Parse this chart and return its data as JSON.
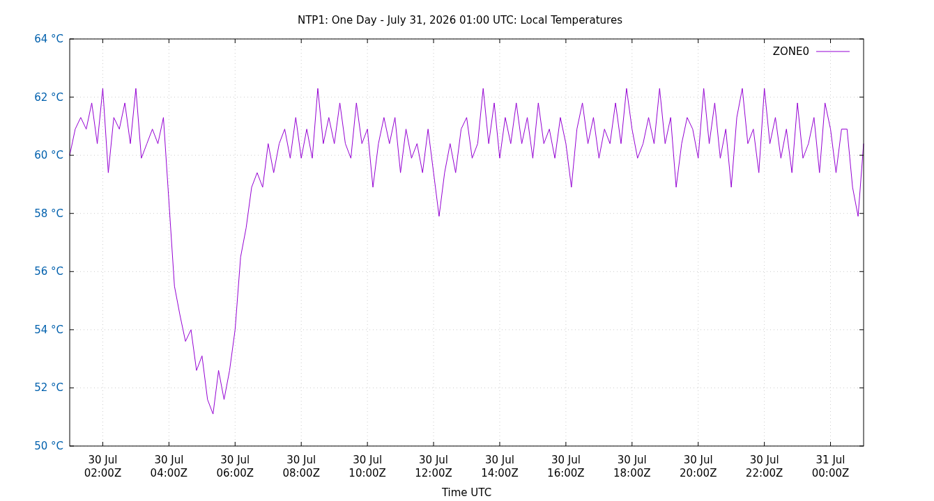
{
  "chart_data": {
    "type": "line",
    "title": "NTP1: One Day - July 31, 2026 01:00 UTC: Local Temperatures",
    "xlabel": "Time UTC",
    "xlim": [
      "2026-07-30T01:00",
      "2026-07-31T01:00"
    ],
    "xticks": [
      {
        "value": "2026-07-30T02:00",
        "label": "30 Jul\n02:00Z"
      },
      {
        "value": "2026-07-30T04:00",
        "label": "30 Jul\n04:00Z"
      },
      {
        "value": "2026-07-30T06:00",
        "label": "30 Jul\n06:00Z"
      },
      {
        "value": "2026-07-30T08:00",
        "label": "30 Jul\n08:00Z"
      },
      {
        "value": "2026-07-30T10:00",
        "label": "30 Jul\n10:00Z"
      },
      {
        "value": "2026-07-30T12:00",
        "label": "30 Jul\n12:00Z"
      },
      {
        "value": "2026-07-30T14:00",
        "label": "30 Jul\n14:00Z"
      },
      {
        "value": "2026-07-30T16:00",
        "label": "30 Jul\n16:00Z"
      },
      {
        "value": "2026-07-30T18:00",
        "label": "30 Jul\n18:00Z"
      },
      {
        "value": "2026-07-30T20:00",
        "label": "30 Jul\n20:00Z"
      },
      {
        "value": "2026-07-30T22:00",
        "label": "30 Jul\n22:00Z"
      },
      {
        "value": "2026-07-31T00:00",
        "label": "31 Jul\n00:00Z"
      }
    ],
    "ylim": [
      50,
      64
    ],
    "yticks": [
      {
        "value": 50,
        "label": "50 °C"
      },
      {
        "value": 52,
        "label": "52 °C"
      },
      {
        "value": 54,
        "label": "54 °C"
      },
      {
        "value": 56,
        "label": "56 °C"
      },
      {
        "value": 58,
        "label": "58 °C"
      },
      {
        "value": 60,
        "label": "60 °C"
      },
      {
        "value": 62,
        "label": "62 °C"
      },
      {
        "value": 64,
        "label": "64 °C"
      }
    ],
    "grid": true,
    "legend": "top right",
    "x": [
      "2026-07-30T01:00",
      "2026-07-30T01:10",
      "2026-07-30T01:20",
      "2026-07-30T01:30",
      "2026-07-30T01:40",
      "2026-07-30T01:50",
      "2026-07-30T02:00",
      "2026-07-30T02:10",
      "2026-07-30T02:20",
      "2026-07-30T02:30",
      "2026-07-30T02:40",
      "2026-07-30T02:50",
      "2026-07-30T03:00",
      "2026-07-30T03:10",
      "2026-07-30T03:20",
      "2026-07-30T03:30",
      "2026-07-30T03:40",
      "2026-07-30T03:50",
      "2026-07-30T04:00",
      "2026-07-30T04:10",
      "2026-07-30T04:20",
      "2026-07-30T04:30",
      "2026-07-30T04:40",
      "2026-07-30T04:50",
      "2026-07-30T05:00",
      "2026-07-30T05:10",
      "2026-07-30T05:20",
      "2026-07-30T05:30",
      "2026-07-30T05:40",
      "2026-07-30T05:50",
      "2026-07-30T06:00",
      "2026-07-30T06:10",
      "2026-07-30T06:20",
      "2026-07-30T06:30",
      "2026-07-30T06:40",
      "2026-07-30T06:50",
      "2026-07-30T07:00",
      "2026-07-30T07:10",
      "2026-07-30T07:20",
      "2026-07-30T07:30",
      "2026-07-30T07:40",
      "2026-07-30T07:50",
      "2026-07-30T08:00",
      "2026-07-30T08:10",
      "2026-07-30T08:20",
      "2026-07-30T08:30",
      "2026-07-30T08:40",
      "2026-07-30T08:50",
      "2026-07-30T09:00",
      "2026-07-30T09:10",
      "2026-07-30T09:20",
      "2026-07-30T09:30",
      "2026-07-30T09:40",
      "2026-07-30T09:50",
      "2026-07-30T10:00",
      "2026-07-30T10:10",
      "2026-07-30T10:20",
      "2026-07-30T10:30",
      "2026-07-30T10:40",
      "2026-07-30T10:50",
      "2026-07-30T11:00",
      "2026-07-30T11:10",
      "2026-07-30T11:20",
      "2026-07-30T11:30",
      "2026-07-30T11:40",
      "2026-07-30T11:50",
      "2026-07-30T12:00",
      "2026-07-30T12:10",
      "2026-07-30T12:20",
      "2026-07-30T12:30",
      "2026-07-30T12:40",
      "2026-07-30T12:50",
      "2026-07-30T13:00",
      "2026-07-30T13:10",
      "2026-07-30T13:20",
      "2026-07-30T13:30",
      "2026-07-30T13:40",
      "2026-07-30T13:50",
      "2026-07-30T14:00",
      "2026-07-30T14:10",
      "2026-07-30T14:20",
      "2026-07-30T14:30",
      "2026-07-30T14:40",
      "2026-07-30T14:50",
      "2026-07-30T15:00",
      "2026-07-30T15:10",
      "2026-07-30T15:20",
      "2026-07-30T15:30",
      "2026-07-30T15:40",
      "2026-07-30T15:50",
      "2026-07-30T16:00",
      "2026-07-30T16:10",
      "2026-07-30T16:20",
      "2026-07-30T16:30",
      "2026-07-30T16:40",
      "2026-07-30T16:50",
      "2026-07-30T17:00",
      "2026-07-30T17:10",
      "2026-07-30T17:20",
      "2026-07-30T17:30",
      "2026-07-30T17:40",
      "2026-07-30T17:50",
      "2026-07-30T18:00",
      "2026-07-30T18:10",
      "2026-07-30T18:20",
      "2026-07-30T18:30",
      "2026-07-30T18:40",
      "2026-07-30T18:50",
      "2026-07-30T19:00",
      "2026-07-30T19:10",
      "2026-07-30T19:20",
      "2026-07-30T19:30",
      "2026-07-30T19:40",
      "2026-07-30T19:50",
      "2026-07-30T20:00",
      "2026-07-30T20:10",
      "2026-07-30T20:20",
      "2026-07-30T20:30",
      "2026-07-30T20:40",
      "2026-07-30T20:50",
      "2026-07-30T21:00",
      "2026-07-30T21:10",
      "2026-07-30T21:20",
      "2026-07-30T21:30",
      "2026-07-30T21:40",
      "2026-07-30T21:50",
      "2026-07-30T22:00",
      "2026-07-30T22:10",
      "2026-07-30T22:20",
      "2026-07-30T22:30",
      "2026-07-30T22:40",
      "2026-07-30T22:50",
      "2026-07-30T23:00",
      "2026-07-30T23:10",
      "2026-07-30T23:20",
      "2026-07-30T23:30",
      "2026-07-30T23:40",
      "2026-07-30T23:50",
      "2026-07-31T00:00",
      "2026-07-31T00:10",
      "2026-07-31T00:20",
      "2026-07-31T00:30",
      "2026-07-31T00:40",
      "2026-07-31T00:50",
      "2026-07-31T01:00"
    ],
    "series": [
      {
        "name": "ZONE0",
        "color": "#9400d3",
        "values": [
          60.0,
          60.9,
          61.3,
          60.9,
          61.8,
          60.4,
          62.3,
          59.4,
          61.3,
          60.9,
          61.8,
          60.4,
          62.3,
          59.9,
          60.4,
          60.9,
          60.4,
          61.3,
          58.4,
          55.5,
          54.5,
          53.6,
          54.0,
          52.6,
          53.1,
          51.6,
          51.1,
          52.6,
          51.6,
          52.6,
          54.0,
          56.5,
          57.5,
          58.9,
          59.4,
          58.9,
          60.4,
          59.4,
          60.4,
          60.9,
          59.9,
          61.3,
          59.9,
          60.9,
          59.9,
          62.3,
          60.4,
          61.3,
          60.4,
          61.8,
          60.4,
          59.9,
          61.8,
          60.4,
          60.9,
          58.9,
          60.4,
          61.3,
          60.4,
          61.3,
          59.4,
          60.9,
          59.9,
          60.4,
          59.4,
          60.9,
          59.4,
          57.9,
          59.4,
          60.4,
          59.4,
          60.9,
          61.3,
          59.9,
          60.4,
          62.3,
          60.4,
          61.8,
          59.9,
          61.3,
          60.4,
          61.8,
          60.4,
          61.3,
          59.9,
          61.8,
          60.4,
          60.9,
          59.9,
          61.3,
          60.4,
          58.9,
          60.9,
          61.8,
          60.4,
          61.3,
          59.9,
          60.9,
          60.4,
          61.8,
          60.4,
          62.3,
          60.9,
          59.9,
          60.4,
          61.3,
          60.4,
          62.3,
          60.4,
          61.3,
          58.9,
          60.4,
          61.3,
          60.9,
          59.9,
          62.3,
          60.4,
          61.8,
          59.9,
          60.9,
          58.9,
          61.3,
          62.3,
          60.4,
          60.9,
          59.4,
          62.3,
          60.4,
          61.3,
          59.9,
          60.9,
          59.4,
          61.8,
          59.9,
          60.4,
          61.3,
          59.4,
          61.8,
          60.9,
          59.4,
          60.9,
          60.9,
          58.9,
          57.9,
          60.4
        ]
      }
    ]
  }
}
